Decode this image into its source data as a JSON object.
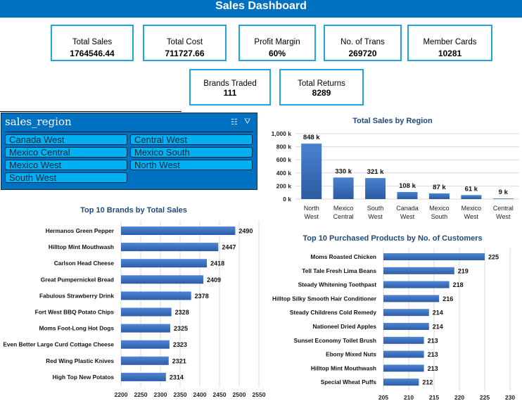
{
  "header": {
    "title": "Sales Dashboard"
  },
  "kpis": [
    {
      "label": "Total Sales",
      "value": "1764546.44"
    },
    {
      "label": "Total Cost",
      "value": "711727.66"
    },
    {
      "label": "Profit Margin",
      "value": "60%"
    },
    {
      "label": "No. of Trans",
      "value": "269720"
    },
    {
      "label": "Member Cards",
      "value": "10281"
    },
    {
      "label": "Brands Traded",
      "value": "111"
    },
    {
      "label": "Total Returns",
      "value": "8289"
    }
  ],
  "slicer": {
    "title": "sales_region",
    "icons": [
      "multi-select-icon",
      "clear-filter-icon"
    ],
    "items": [
      "Canada West",
      "Central West",
      "Mexico Central",
      "Mexico South",
      "Mexico West",
      "North West",
      "South West"
    ]
  },
  "colors": {
    "header": "#0070c0",
    "kpi_border": "#1ba7dc",
    "slicer_bg": "#0070c0",
    "slicer_item": "#00b0f0",
    "bar": "#3a6fc0",
    "title": "#1f497d"
  },
  "chart_data": [
    {
      "type": "bar",
      "title": "Total Sales by Region",
      "categories": [
        [
          "North",
          "West"
        ],
        [
          "Mexico",
          "Central"
        ],
        [
          "South",
          "West"
        ],
        [
          "Canada",
          "West"
        ],
        [
          "Mexico",
          "South"
        ],
        [
          "Mexico",
          "West"
        ],
        [
          "Central",
          "West"
        ]
      ],
      "values": [
        848,
        330,
        321,
        108,
        87,
        61,
        9
      ],
      "data_labels": [
        "848 k",
        "330 k",
        "321 k",
        "108 k",
        "87 k",
        "61 k",
        "9 k"
      ],
      "ylim": [
        0,
        1000
      ],
      "yticks": [
        "0 k",
        "200 k",
        "400 k",
        "600 k",
        "800 k",
        "1,000 k"
      ],
      "grid": true
    },
    {
      "type": "bar",
      "orientation": "horizontal",
      "title": "Top 10 Brands by Total Sales",
      "categories": [
        "Hermanos Green Pepper",
        "Hilltop Mint Mouthwash",
        "Carlson Head Cheese",
        "Great Pumpernickel Bread",
        "Fabulous Strawberry Drink",
        "Fort West BBQ Potato Chips",
        "Moms Foot-Long Hot Dogs",
        "Even Better Large Curd Cottage Cheese",
        "Red Wing Plastic Knives",
        "High Top New Potatos"
      ],
      "values": [
        2490,
        2447,
        2418,
        2409,
        2378,
        2328,
        2325,
        2323,
        2321,
        2314
      ],
      "xlim": [
        2200,
        2550
      ],
      "xticks": [
        "2200",
        "2250",
        "2300",
        "2350",
        "2400",
        "2450",
        "2500",
        "2550"
      ],
      "grid": true
    },
    {
      "type": "bar",
      "orientation": "horizontal",
      "title": "Top 10 Purchased Products by No. of Customers",
      "categories": [
        "Moms Roasted Chicken",
        "Tell Tale Fresh Lima Beans",
        "Steady Whitening Toothpast",
        "Hilltop Silky Smooth Hair Conditioner",
        "Steady Childrens Cold Remedy",
        "Nationeel Dried Apples",
        "Sunset Economy Toilet Brush",
        "Ebony Mixed Nuts",
        "Hilltop Mint Mouthwash",
        "Special Wheat Puffs"
      ],
      "values": [
        225,
        219,
        218,
        216,
        214,
        214,
        213,
        213,
        213,
        212
      ],
      "xlim": [
        205,
        230
      ],
      "xticks": [
        "205",
        "210",
        "215",
        "220",
        "225",
        "230"
      ],
      "grid": true
    }
  ]
}
